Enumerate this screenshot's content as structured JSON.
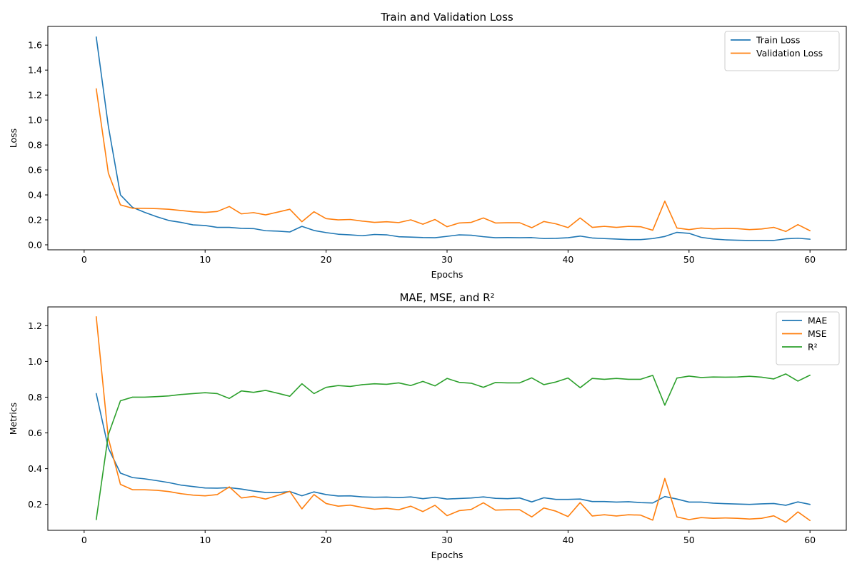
{
  "chart_data": [
    {
      "type": "line",
      "title": "Train and Validation Loss",
      "xlabel": "Epochs",
      "ylabel": "Loss",
      "xlim": [
        -3,
        63
      ],
      "ylim": [
        -0.04,
        1.75
      ],
      "xticks": [
        0,
        10,
        20,
        30,
        40,
        50,
        60
      ],
      "xtick_labels": [
        "0",
        "10",
        "20",
        "30",
        "40",
        "50",
        "60"
      ],
      "yticks": [
        0.0,
        0.2,
        0.4,
        0.6,
        0.8,
        1.0,
        1.2,
        1.4,
        1.6
      ],
      "ytick_labels": [
        "0.0",
        "0.2",
        "0.4",
        "0.6",
        "0.8",
        "1.0",
        "1.2",
        "1.4",
        "1.6"
      ],
      "grid": false,
      "legend_position": "top-right",
      "x": [
        1,
        2,
        3,
        4,
        5,
        6,
        7,
        8,
        9,
        10,
        11,
        12,
        13,
        14,
        15,
        16,
        17,
        18,
        19,
        20,
        21,
        22,
        23,
        24,
        25,
        26,
        27,
        28,
        29,
        30,
        31,
        32,
        33,
        34,
        35,
        36,
        37,
        38,
        39,
        40,
        41,
        42,
        43,
        44,
        45,
        46,
        47,
        48,
        49,
        50,
        51,
        52,
        53,
        54,
        55,
        56,
        57,
        58,
        59,
        60
      ],
      "series": [
        {
          "name": "Train Loss",
          "color": "#1f77b4",
          "values": [
            1.665,
            0.95,
            0.4,
            0.3,
            0.26,
            0.225,
            0.195,
            0.18,
            0.16,
            0.155,
            0.14,
            0.14,
            0.132,
            0.13,
            0.113,
            0.11,
            0.103,
            0.148,
            0.115,
            0.098,
            0.085,
            0.08,
            0.073,
            0.083,
            0.08,
            0.065,
            0.062,
            0.058,
            0.057,
            0.068,
            0.08,
            0.077,
            0.065,
            0.057,
            0.058,
            0.057,
            0.058,
            0.05,
            0.052,
            0.057,
            0.07,
            0.055,
            0.05,
            0.046,
            0.042,
            0.042,
            0.05,
            0.067,
            0.1,
            0.092,
            0.06,
            0.047,
            0.04,
            0.037,
            0.035,
            0.035,
            0.035,
            0.048,
            0.053,
            0.045
          ]
        },
        {
          "name": "Validation Loss",
          "color": "#ff7f0e",
          "values": [
            1.25,
            0.575,
            0.32,
            0.293,
            0.293,
            0.29,
            0.285,
            0.275,
            0.265,
            0.26,
            0.267,
            0.307,
            0.248,
            0.258,
            0.24,
            0.262,
            0.285,
            0.185,
            0.265,
            0.21,
            0.2,
            0.203,
            0.19,
            0.18,
            0.185,
            0.178,
            0.2,
            0.165,
            0.203,
            0.145,
            0.175,
            0.18,
            0.215,
            0.175,
            0.177,
            0.177,
            0.137,
            0.187,
            0.168,
            0.138,
            0.215,
            0.14,
            0.148,
            0.14,
            0.148,
            0.145,
            0.117,
            0.35,
            0.135,
            0.122,
            0.135,
            0.128,
            0.132,
            0.13,
            0.122,
            0.127,
            0.14,
            0.107,
            0.162,
            0.113
          ]
        }
      ]
    },
    {
      "type": "line",
      "title": "MAE, MSE, and R²",
      "xlabel": "Epochs",
      "ylabel": "Metrics",
      "xlim": [
        -3,
        63
      ],
      "ylim": [
        0.055,
        1.305
      ],
      "xticks": [
        0,
        10,
        20,
        30,
        40,
        50,
        60
      ],
      "xtick_labels": [
        "0",
        "10",
        "20",
        "30",
        "40",
        "50",
        "60"
      ],
      "yticks": [
        0.2,
        0.4,
        0.6,
        0.8,
        1.0,
        1.2
      ],
      "ytick_labels": [
        "0.2",
        "0.4",
        "0.6",
        "0.8",
        "1.0",
        "1.2"
      ],
      "grid": false,
      "legend_position": "top-right",
      "x": [
        1,
        2,
        3,
        4,
        5,
        6,
        7,
        8,
        9,
        10,
        11,
        12,
        13,
        14,
        15,
        16,
        17,
        18,
        19,
        20,
        21,
        22,
        23,
        24,
        25,
        26,
        27,
        28,
        29,
        30,
        31,
        32,
        33,
        34,
        35,
        36,
        37,
        38,
        39,
        40,
        41,
        42,
        43,
        44,
        45,
        46,
        47,
        48,
        49,
        50,
        51,
        52,
        53,
        54,
        55,
        56,
        57,
        58,
        59,
        60
      ],
      "series": [
        {
          "name": "MAE",
          "color": "#1f77b4",
          "values": [
            0.82,
            0.515,
            0.375,
            0.35,
            0.343,
            0.333,
            0.322,
            0.308,
            0.3,
            0.292,
            0.291,
            0.294,
            0.286,
            0.275,
            0.267,
            0.266,
            0.272,
            0.248,
            0.27,
            0.255,
            0.247,
            0.248,
            0.242,
            0.24,
            0.241,
            0.238,
            0.242,
            0.232,
            0.24,
            0.23,
            0.233,
            0.236,
            0.242,
            0.234,
            0.232,
            0.236,
            0.214,
            0.237,
            0.228,
            0.228,
            0.23,
            0.216,
            0.216,
            0.213,
            0.215,
            0.21,
            0.208,
            0.244,
            0.23,
            0.213,
            0.213,
            0.207,
            0.204,
            0.202,
            0.2,
            0.203,
            0.205,
            0.195,
            0.214,
            0.2
          ]
        },
        {
          "name": "MSE",
          "color": "#ff7f0e",
          "values": [
            1.25,
            0.57,
            0.312,
            0.282,
            0.282,
            0.279,
            0.272,
            0.26,
            0.252,
            0.248,
            0.255,
            0.298,
            0.236,
            0.245,
            0.23,
            0.25,
            0.273,
            0.175,
            0.255,
            0.205,
            0.19,
            0.196,
            0.183,
            0.173,
            0.178,
            0.17,
            0.19,
            0.16,
            0.195,
            0.137,
            0.165,
            0.172,
            0.209,
            0.168,
            0.17,
            0.17,
            0.13,
            0.18,
            0.162,
            0.132,
            0.21,
            0.135,
            0.142,
            0.135,
            0.142,
            0.14,
            0.112,
            0.345,
            0.13,
            0.115,
            0.126,
            0.122,
            0.124,
            0.122,
            0.118,
            0.122,
            0.136,
            0.1,
            0.158,
            0.11
          ]
        },
        {
          "name": "R²",
          "color": "#2ca02c",
          "values": [
            0.115,
            0.59,
            0.78,
            0.8,
            0.8,
            0.803,
            0.807,
            0.815,
            0.82,
            0.825,
            0.82,
            0.793,
            0.835,
            0.827,
            0.838,
            0.822,
            0.805,
            0.875,
            0.82,
            0.855,
            0.865,
            0.86,
            0.87,
            0.875,
            0.872,
            0.88,
            0.865,
            0.888,
            0.863,
            0.905,
            0.883,
            0.878,
            0.855,
            0.882,
            0.88,
            0.88,
            0.908,
            0.87,
            0.885,
            0.907,
            0.853,
            0.905,
            0.9,
            0.905,
            0.9,
            0.9,
            0.922,
            0.755,
            0.907,
            0.918,
            0.91,
            0.913,
            0.912,
            0.913,
            0.917,
            0.912,
            0.902,
            0.93,
            0.89,
            0.923
          ]
        }
      ]
    }
  ]
}
